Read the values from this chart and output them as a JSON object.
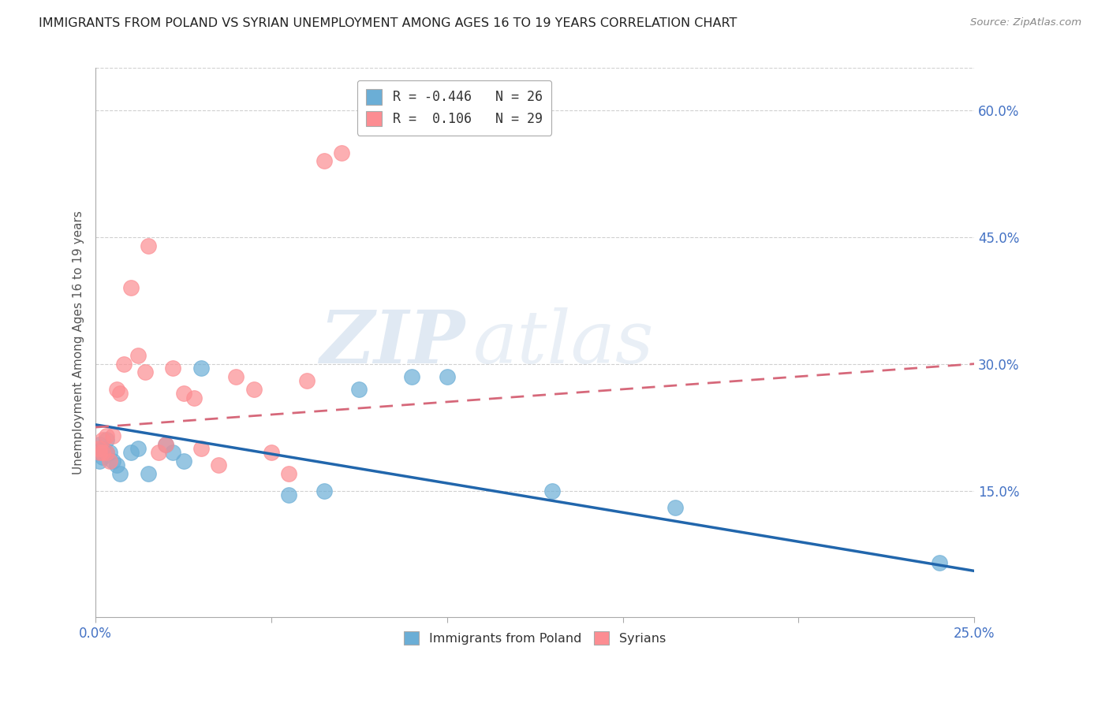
{
  "title": "IMMIGRANTS FROM POLAND VS SYRIAN UNEMPLOYMENT AMONG AGES 16 TO 19 YEARS CORRELATION CHART",
  "source": "Source: ZipAtlas.com",
  "ylabel": "Unemployment Among Ages 16 to 19 years",
  "xlim": [
    0.0,
    0.25
  ],
  "ylim": [
    0.0,
    0.65
  ],
  "xtick_show": [
    0.0,
    0.25
  ],
  "xtick_hidden": [
    0.05,
    0.1,
    0.15,
    0.2
  ],
  "yticks_right": [
    0.15,
    0.3,
    0.45,
    0.6
  ],
  "poland_R": -0.446,
  "poland_N": 26,
  "syrian_R": 0.106,
  "syrian_N": 29,
  "poland_color": "#6baed6",
  "syrian_color": "#fc8d92",
  "poland_line_color": "#2166ac",
  "syrian_line_color": "#d6687a",
  "background_color": "#ffffff",
  "watermark_text": "ZIP",
  "watermark_text2": "atlas",
  "poland_x": [
    0.001,
    0.001,
    0.001,
    0.002,
    0.002,
    0.003,
    0.003,
    0.004,
    0.005,
    0.006,
    0.007,
    0.01,
    0.012,
    0.015,
    0.02,
    0.022,
    0.025,
    0.03,
    0.055,
    0.065,
    0.075,
    0.09,
    0.1,
    0.13,
    0.165,
    0.24
  ],
  "poland_y": [
    0.205,
    0.195,
    0.185,
    0.2,
    0.19,
    0.21,
    0.195,
    0.195,
    0.185,
    0.18,
    0.17,
    0.195,
    0.2,
    0.17,
    0.205,
    0.195,
    0.185,
    0.295,
    0.145,
    0.15,
    0.27,
    0.285,
    0.285,
    0.15,
    0.13,
    0.065
  ],
  "syrian_x": [
    0.001,
    0.001,
    0.002,
    0.002,
    0.003,
    0.003,
    0.004,
    0.005,
    0.006,
    0.007,
    0.008,
    0.01,
    0.012,
    0.014,
    0.015,
    0.018,
    0.02,
    0.022,
    0.025,
    0.028,
    0.03,
    0.035,
    0.04,
    0.045,
    0.05,
    0.055,
    0.06,
    0.065,
    0.07
  ],
  "syrian_y": [
    0.2,
    0.195,
    0.21,
    0.195,
    0.215,
    0.195,
    0.185,
    0.215,
    0.27,
    0.265,
    0.3,
    0.39,
    0.31,
    0.29,
    0.44,
    0.195,
    0.205,
    0.295,
    0.265,
    0.26,
    0.2,
    0.18,
    0.285,
    0.27,
    0.195,
    0.17,
    0.28,
    0.54,
    0.55
  ],
  "poland_line_x": [
    0.0,
    0.25
  ],
  "poland_line_y": [
    0.228,
    0.055
  ],
  "syrian_line_x": [
    0.0,
    0.25
  ],
  "syrian_line_y": [
    0.225,
    0.3
  ]
}
